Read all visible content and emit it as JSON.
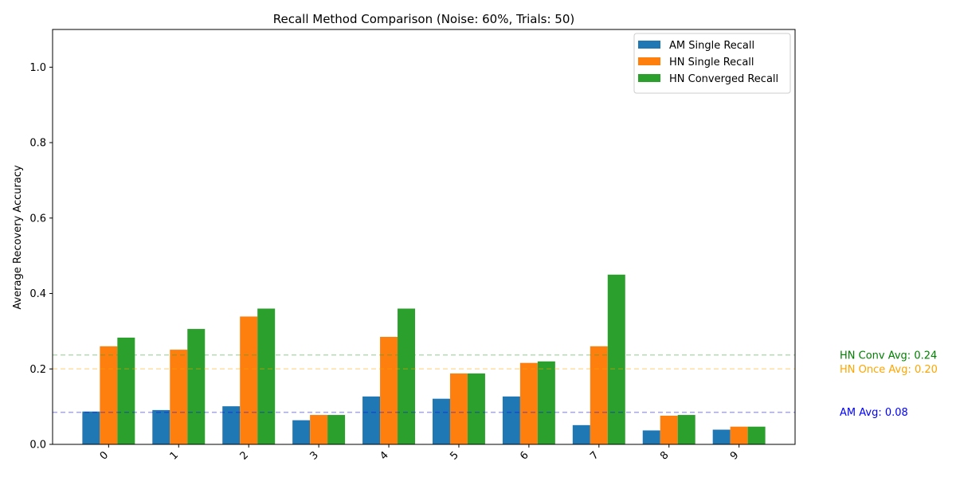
{
  "chart_data": {
    "type": "bar",
    "title": "Recall Method Comparison (Noise: 60%, Trials: 50)",
    "xlabel": "",
    "ylabel": "Average Recovery Accuracy",
    "categories": [
      "0",
      "1",
      "2",
      "3",
      "4",
      "5",
      "6",
      "7",
      "8",
      "9"
    ],
    "ylim": [
      0,
      1.1
    ],
    "yticks": [
      "0.0",
      "0.2",
      "0.4",
      "0.6",
      "0.8",
      "1.0"
    ],
    "ytick_values": [
      0,
      0.2,
      0.4,
      0.6,
      0.8,
      1.0
    ],
    "grid": false,
    "legend_position": "top-right",
    "series": [
      {
        "name": "AM Single Recall",
        "color": "#1f77b4",
        "values": [
          0.087,
          0.091,
          0.101,
          0.064,
          0.127,
          0.121,
          0.127,
          0.051,
          0.037,
          0.039
        ]
      },
      {
        "name": "HN Single Recall",
        "color": "#ff7f0e",
        "values": [
          0.26,
          0.251,
          0.339,
          0.078,
          0.285,
          0.188,
          0.216,
          0.26,
          0.076,
          0.047
        ]
      },
      {
        "name": "HN Converged Recall",
        "color": "#2ca02c",
        "values": [
          0.283,
          0.306,
          0.36,
          0.078,
          0.36,
          0.188,
          0.22,
          0.45,
          0.078,
          0.047
        ]
      }
    ],
    "reference_lines": [
      {
        "label": "HN Conv Avg: 0.24",
        "value": 0.237,
        "color": "#2ca02c",
        "text_color": "green"
      },
      {
        "label": "HN Once Avg: 0.20",
        "value": 0.2,
        "color": "#ffa500",
        "text_color": "orange"
      },
      {
        "label": "AM Avg: 0.08",
        "value": 0.085,
        "color": "#0000ff",
        "text_color": "blue"
      }
    ]
  }
}
